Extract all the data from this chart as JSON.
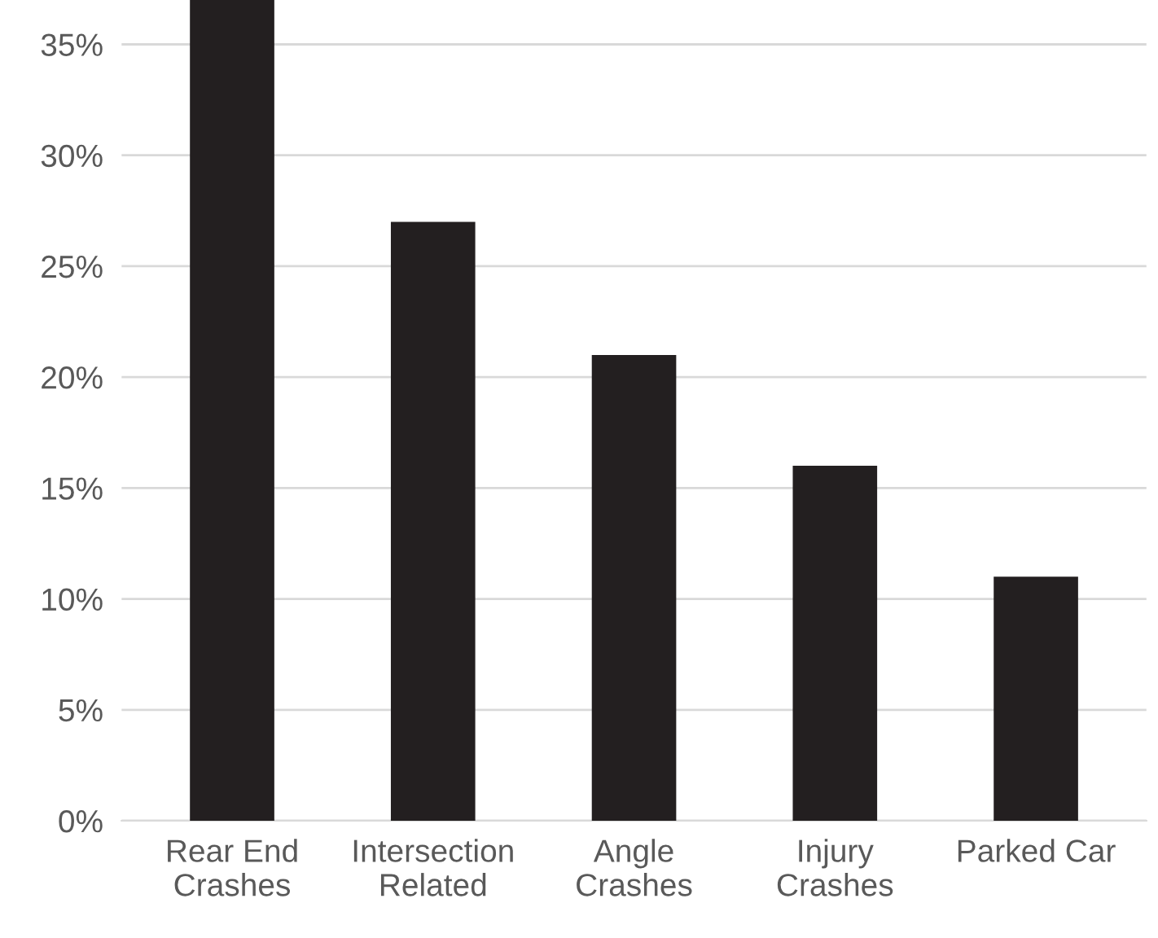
{
  "chart_data": {
    "type": "bar",
    "categories": [
      "Rear End\nCrashes",
      "Intersection\nRelated",
      "Angle\nCrashes",
      "Injury\nCrashes",
      "Parked Car"
    ],
    "values": [
      37,
      27,
      21,
      16,
      11
    ],
    "color": "#231f20",
    "ylim": [
      0,
      37
    ],
    "yticks": [
      {
        "value": 0,
        "label": "0%"
      },
      {
        "value": 5,
        "label": "5%"
      },
      {
        "value": 10,
        "label": "10%"
      },
      {
        "value": 15,
        "label": "15%"
      },
      {
        "value": 20,
        "label": "20%"
      },
      {
        "value": 25,
        "label": "25%"
      },
      {
        "value": 30,
        "label": "30%"
      },
      {
        "value": 35,
        "label": "35%"
      }
    ],
    "grid": "y"
  }
}
